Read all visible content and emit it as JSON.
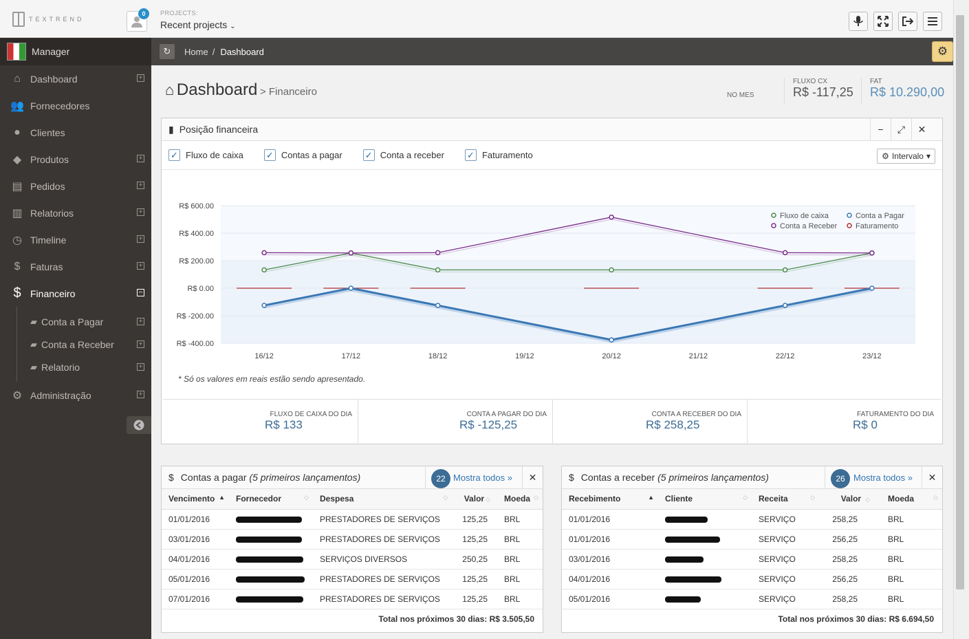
{
  "header": {
    "logo_text": "TEXTREND",
    "user_badge": "0",
    "projects_label": "PROJECTS:",
    "projects_value": "Recent projects"
  },
  "sidebar": {
    "manager": "Manager",
    "items": [
      {
        "label": "Dashboard",
        "icon": "home-icon",
        "expand": "⊞"
      },
      {
        "label": "Fornecedores",
        "icon": "users-icon",
        "expand": ""
      },
      {
        "label": "Clientes",
        "icon": "user-icon",
        "expand": ""
      },
      {
        "label": "Produtos",
        "icon": "tags-icon",
        "expand": "⊞"
      },
      {
        "label": "Pedidos",
        "icon": "book-icon",
        "expand": "⊞"
      },
      {
        "label": "Relatorios",
        "icon": "bar-chart-icon",
        "expand": "⊞"
      },
      {
        "label": "Timeline",
        "icon": "clock-icon",
        "expand": "⊞"
      },
      {
        "label": "Faturas",
        "icon": "dollar-icon",
        "expand": "⊞"
      },
      {
        "label": "Financeiro",
        "icon": "dollar-icon",
        "expand": "⊟"
      }
    ],
    "subitems": [
      {
        "label": "Conta a Pagar"
      },
      {
        "label": "Conta a Receber"
      },
      {
        "label": "Relatorio"
      }
    ],
    "admin": "Administração"
  },
  "breadcrumb": {
    "home": "Home",
    "sep": "/",
    "current": "Dashboard"
  },
  "page": {
    "title": "Dashboard",
    "subtitle": "> Financeiro",
    "no_mes": "NO MES",
    "fluxo_label": "FLUXO CX",
    "fluxo_value": "R$ -117,25",
    "fat_label": "FAT",
    "fat_value": "R$ 10.290,00"
  },
  "panel": {
    "title": "Posição financeira",
    "checks": [
      "Fluxo de caixa",
      "Contas a pagar",
      "Conta a receber",
      "Faturamento"
    ],
    "intervalo": "Intervalo",
    "note": "* Só os valores em reais estão sendo apresentado.",
    "day_stats": [
      {
        "label": "FLUXO DE CAIXA DO DIA",
        "value": "R$ 133"
      },
      {
        "label": "CONTA A PAGAR DO DIA",
        "value": "R$ -125,25"
      },
      {
        "label": "CONTA A RECEBER DO DIA",
        "value": "R$ 258,25"
      },
      {
        "label": "FATURAMENTO DO DIA",
        "value": "R$ 0"
      }
    ]
  },
  "chart_data": {
    "type": "line",
    "x": [
      "16/12",
      "17/12",
      "18/12",
      "19/12",
      "20/12",
      "21/12",
      "22/12",
      "23/12"
    ],
    "y_ticks": [
      "R$ 600.00",
      "R$ 400.00",
      "R$ 200.00",
      "R$ 0.00",
      "R$ -200.00",
      "R$ -400.00"
    ],
    "ylim": [
      -400,
      600
    ],
    "grid": true,
    "legend_position": "top-right",
    "series": [
      {
        "name": "Fluxo de caixa",
        "color": "#4a8a4a",
        "values": [
          133,
          256,
          133,
          null,
          133,
          null,
          133,
          256
        ]
      },
      {
        "name": "Conta a Pagar",
        "color": "#3a78b4",
        "values": [
          -125.25,
          0,
          -125.25,
          null,
          -375.75,
          null,
          -125.25,
          0
        ]
      },
      {
        "name": "Conta a Receber",
        "color": "#7a2a8a",
        "values": [
          258.25,
          256.25,
          258.25,
          null,
          516.5,
          null,
          258.25,
          256.25
        ]
      },
      {
        "name": "Faturamento",
        "color": "#b03030",
        "values": [
          0,
          0,
          0,
          null,
          0,
          null,
          0,
          0
        ]
      }
    ]
  },
  "pagar": {
    "title": "Contas a pagar",
    "subtitle": "(5 primeiros lançamentos)",
    "count": "22",
    "mostra": "Mostra todos »",
    "headers": [
      "Vencimento",
      "Fornecedor",
      "Despesa",
      "Valor",
      "Moeda"
    ],
    "rows": [
      {
        "date": "01/01/2016",
        "despesa": "PRESTADORES DE SERVIÇOS",
        "valor": "125,25",
        "moeda": "BRL"
      },
      {
        "date": "03/01/2016",
        "despesa": "PRESTADORES DE SERVIÇOS",
        "valor": "125,25",
        "moeda": "BRL"
      },
      {
        "date": "04/01/2016",
        "despesa": "SERVIÇOS DIVERSOS",
        "valor": "250,25",
        "moeda": "BRL"
      },
      {
        "date": "05/01/2016",
        "despesa": "PRESTADORES DE SERVIÇOS",
        "valor": "125,25",
        "moeda": "BRL"
      },
      {
        "date": "07/01/2016",
        "despesa": "PRESTADORES DE SERVIÇOS",
        "valor": "125,25",
        "moeda": "BRL"
      }
    ],
    "total": "Total nos próximos 30 dias: R$ 3.505,50"
  },
  "receber": {
    "title": "Contas a receber",
    "subtitle": "(5 primeiros lançamentos)",
    "count": "26",
    "mostra": "Mostra todos »",
    "headers": [
      "Recebimento",
      "Cliente",
      "Receita",
      "Valor",
      "Moeda"
    ],
    "rows": [
      {
        "date": "01/01/2016",
        "receita": "SERVIÇO",
        "valor": "258,25",
        "moeda": "BRL"
      },
      {
        "date": "01/01/2016",
        "receita": "SERVIÇO",
        "valor": "256,25",
        "moeda": "BRL"
      },
      {
        "date": "03/01/2016",
        "receita": "SERVIÇO",
        "valor": "258,25",
        "moeda": "BRL"
      },
      {
        "date": "04/01/2016",
        "receita": "SERVIÇO",
        "valor": "256,25",
        "moeda": "BRL"
      },
      {
        "date": "05/01/2016",
        "receita": "SERVIÇO",
        "valor": "258,25",
        "moeda": "BRL"
      }
    ],
    "total": "Total nos próximos 30 dias: R$ 6.694,50"
  }
}
